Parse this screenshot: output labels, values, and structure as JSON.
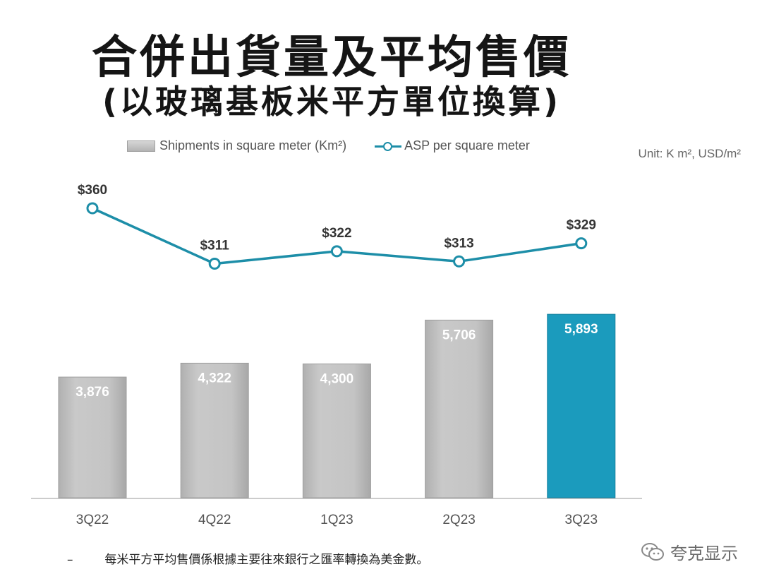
{
  "title_line1": "合併出貨量及平均售價",
  "title_line2": "(以玻璃基板米平方單位換算)",
  "unit_note": "Unit: K m², USD/m²",
  "footnote_dash": "–",
  "footnote": "每米平方平均售價係根據主要往來銀行之匯率轉換為美金數。",
  "watermark": "夸克显示",
  "colors": {
    "bar": "#c2c2c2",
    "bar_highlight": "#1b9bbd",
    "line": "#1d8ea8",
    "bar_label": "#ffffff"
  },
  "chart_data": {
    "type": "bar",
    "categories": [
      "3Q22",
      "4Q22",
      "1Q23",
      "2Q23",
      "3Q23"
    ],
    "series": [
      {
        "name": "Shipments in square meter (Km²)",
        "type": "bar",
        "values": [
          3876,
          4322,
          4300,
          5706,
          5893
        ],
        "labels": [
          "3,876",
          "4,322",
          "4,300",
          "5,706",
          "5,893"
        ],
        "highlight_index": 4
      },
      {
        "name": "ASP per square meter",
        "type": "line",
        "values": [
          360,
          311,
          322,
          313,
          329
        ],
        "labels": [
          "$360",
          "$311",
          "$322",
          "$313",
          "$329"
        ]
      }
    ],
    "legend": "top",
    "grid": false
  }
}
